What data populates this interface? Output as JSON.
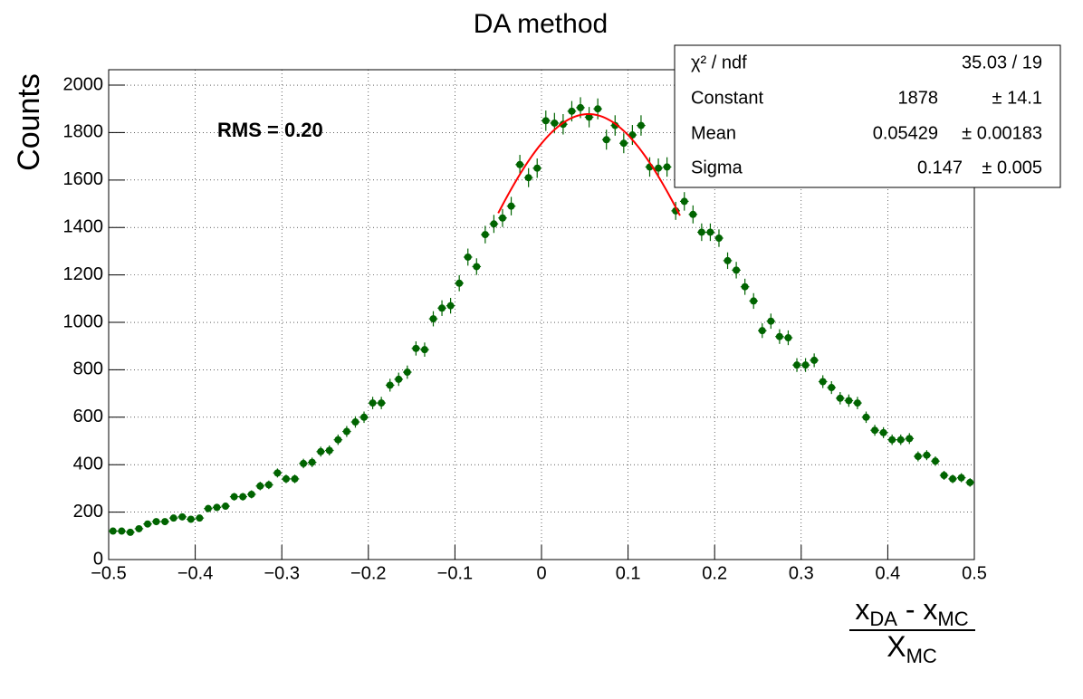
{
  "chart_data": {
    "type": "scatter",
    "title": "DA method",
    "y_label": "Counts",
    "x_label": {
      "numerator": [
        "x",
        "DA",
        " - x",
        "MC"
      ],
      "denominator": [
        "X",
        "MC"
      ]
    },
    "annotation": "RMS = 0.20",
    "annotation_color": "#ff0000",
    "color": "#006400",
    "grid": true,
    "xlim": [
      -0.5,
      0.5
    ],
    "ylim": [
      0,
      2065
    ],
    "xticks": [
      {
        "value": -0.5,
        "label": "−0.5"
      },
      {
        "value": -0.4,
        "label": "−0.4"
      },
      {
        "value": -0.3,
        "label": "−0.3"
      },
      {
        "value": -0.2,
        "label": "−0.2"
      },
      {
        "value": -0.1,
        "label": "−0.1"
      },
      0,
      0.1,
      0.2,
      0.3,
      0.4,
      0.5
    ],
    "yticks": [
      0,
      200,
      400,
      600,
      800,
      1000,
      1200,
      1400,
      1600,
      1800,
      2000
    ],
    "x": [
      -0.495,
      -0.485,
      -0.475,
      -0.465,
      -0.455,
      -0.445,
      -0.435,
      -0.425,
      -0.415,
      -0.405,
      -0.395,
      -0.385,
      -0.375,
      -0.365,
      -0.355,
      -0.345,
      -0.335,
      -0.325,
      -0.315,
      -0.305,
      -0.295,
      -0.285,
      -0.275,
      -0.265,
      -0.255,
      -0.245,
      -0.235,
      -0.225,
      -0.215,
      -0.205,
      -0.195,
      -0.185,
      -0.175,
      -0.165,
      -0.155,
      -0.145,
      -0.135,
      -0.125,
      -0.115,
      -0.105,
      -0.095,
      -0.085,
      -0.075,
      -0.065,
      -0.055,
      -0.045,
      -0.035,
      -0.025,
      -0.015,
      -0.005,
      0.005,
      0.015,
      0.025,
      0.035,
      0.045,
      0.055,
      0.065,
      0.075,
      0.085,
      0.095,
      0.105,
      0.115,
      0.125,
      0.135,
      0.145,
      0.155,
      0.165,
      0.175,
      0.185,
      0.195,
      0.205,
      0.215,
      0.225,
      0.235,
      0.245,
      0.255,
      0.265,
      0.275,
      0.285,
      0.295,
      0.305,
      0.315,
      0.325,
      0.335,
      0.345,
      0.355,
      0.365,
      0.375,
      0.385,
      0.395,
      0.405,
      0.415,
      0.425,
      0.435,
      0.445,
      0.455,
      0.465,
      0.475,
      0.485,
      0.495
    ],
    "values": [
      120,
      120,
      115,
      130,
      150,
      160,
      160,
      175,
      180,
      170,
      175,
      215,
      220,
      225,
      265,
      265,
      275,
      310,
      315,
      365,
      340,
      340,
      405,
      410,
      455,
      460,
      505,
      540,
      580,
      600,
      660,
      660,
      735,
      760,
      790,
      890,
      885,
      1015,
      1060,
      1070,
      1165,
      1275,
      1235,
      1370,
      1415,
      1440,
      1490,
      1665,
      1610,
      1650,
      1850,
      1840,
      1835,
      1890,
      1905,
      1865,
      1900,
      1770,
      1830,
      1755,
      1790,
      1830,
      1655,
      1650,
      1655,
      1470,
      1510,
      1455,
      1380,
      1380,
      1355,
      1260,
      1220,
      1150,
      1090,
      965,
      1005,
      940,
      935,
      820,
      820,
      840,
      750,
      725,
      680,
      670,
      660,
      600,
      545,
      535,
      505,
      505,
      510,
      435,
      440,
      415,
      355,
      340,
      345,
      325
    ],
    "errors": [
      11,
      11,
      11,
      11,
      12,
      13,
      13,
      13,
      13,
      13,
      13,
      15,
      15,
      15,
      16,
      16,
      17,
      18,
      18,
      19,
      18,
      18,
      20,
      20,
      21,
      21,
      22,
      23,
      24,
      24,
      26,
      26,
      27,
      28,
      28,
      30,
      30,
      32,
      33,
      33,
      34,
      36,
      35,
      37,
      38,
      38,
      39,
      41,
      40,
      41,
      43,
      43,
      43,
      43,
      44,
      43,
      44,
      42,
      43,
      42,
      42,
      43,
      41,
      41,
      41,
      38,
      39,
      38,
      37,
      37,
      37,
      35,
      35,
      34,
      33,
      31,
      32,
      31,
      31,
      29,
      29,
      29,
      27,
      27,
      26,
      26,
      26,
      24,
      23,
      23,
      22,
      22,
      23,
      21,
      21,
      20,
      19,
      18,
      19,
      18
    ],
    "fit": {
      "color": "#ff0000",
      "range": [
        -0.05,
        0.16
      ]
    },
    "stats_box": {
      "rows": [
        {
          "label": "χ² / ndf",
          "value": "35.03 / 19"
        },
        {
          "label": "Constant",
          "value": 1878,
          "error": "± 14.1"
        },
        {
          "label": "Mean",
          "value": 0.05429,
          "error": "± 0.00183"
        },
        {
          "label": "Sigma",
          "value": 0.147,
          "error": "± 0.005"
        }
      ]
    }
  }
}
